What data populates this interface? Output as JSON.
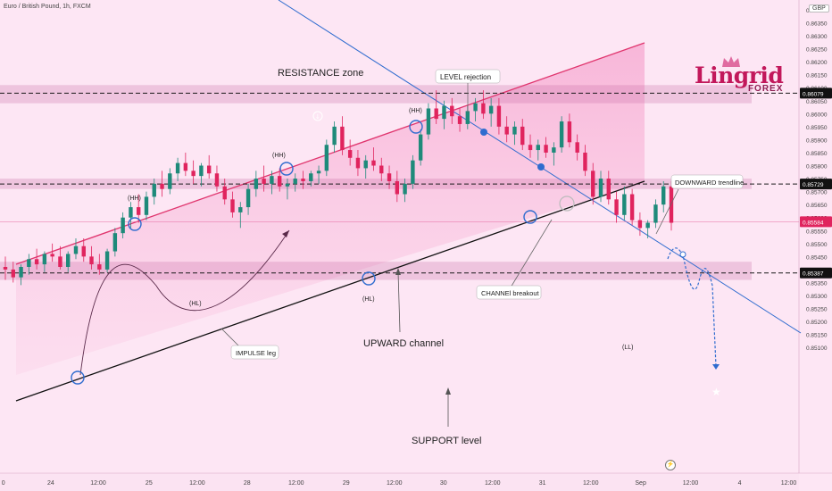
{
  "header": {
    "symbol": "Euro / British Pound, 1h, FXCM"
  },
  "currency_badge": "GBP",
  "logo": {
    "name": "Lingrid",
    "sub": "FOREX"
  },
  "chart_data": {
    "type": "candlestick",
    "ylim": [
      0.8508,
      0.8641
    ],
    "y_ticks": [
      "0.86400",
      "0.86350",
      "0.86300",
      "0.86250",
      "0.86200",
      "0.86150",
      "0.86100",
      "0.86050",
      "0.86000",
      "0.85950",
      "0.85900",
      "0.85850",
      "0.85800",
      "0.85750",
      "0.85700",
      "0.85650",
      "0.85600",
      "0.85550",
      "0.85500",
      "0.85450",
      "0.85400",
      "0.85350",
      "0.85300",
      "0.85250",
      "0.85200",
      "0.85150",
      "0.85100"
    ],
    "x_ticks": [
      {
        "label": "24",
        "pos": 0.061
      },
      {
        "label": "12:00",
        "pos": 0.118
      },
      {
        "label": "25",
        "pos": 0.179
      },
      {
        "label": "12:00",
        "pos": 0.237
      },
      {
        "label": "28",
        "pos": 0.297
      },
      {
        "label": "12:00",
        "pos": 0.356
      },
      {
        "label": "29",
        "pos": 0.416
      },
      {
        "label": "12:00",
        "pos": 0.474
      },
      {
        "label": "30",
        "pos": 0.533
      },
      {
        "label": "12:00",
        "pos": 0.592
      },
      {
        "label": "31",
        "pos": 0.652
      },
      {
        "label": "12:00",
        "pos": 0.71
      },
      {
        "label": "Sep",
        "pos": 0.77
      },
      {
        "label": "12:00",
        "pos": 0.83
      },
      {
        "label": "4",
        "pos": 0.889
      },
      {
        "label": "12:00",
        "pos": 0.948
      },
      {
        "label": "0",
        "pos": 0.004
      }
    ],
    "price_markers": [
      {
        "value": 0.86079,
        "label": "0.86079",
        "style": "dashed"
      },
      {
        "value": 0.85729,
        "label": "0.85729",
        "style": "dashed"
      },
      {
        "value": 0.85584,
        "label": "0.85584",
        "style": "current"
      },
      {
        "value": 0.85387,
        "label": "0.85387",
        "style": "dashed"
      }
    ],
    "zones": [
      {
        "name": "top-band",
        "from": 0.8604,
        "to": 0.8611
      },
      {
        "name": "mid-band",
        "from": 0.8571,
        "to": 0.8575
      },
      {
        "name": "bottom-band",
        "from": 0.8536,
        "to": 0.8543
      }
    ],
    "annotations": {
      "resistance": "RESISTANCE zone",
      "level_rejection": "LEVEL rejection",
      "downward_trendline": "DOWNWARD trendline",
      "channel_breakout": "CHANNEl breakout",
      "impulse_leg": "IMPULSE leg",
      "upward_channel": "UPWARD channel",
      "support": "SUPPORT level",
      "hh1": "(HH)",
      "hh2": "(HH)",
      "hh3": "(HH)",
      "hl1": "(HL)",
      "hl2": "(HL)",
      "ll": "(LL)"
    },
    "candles": [
      [
        0.8541,
        0.8545,
        0.8536,
        0.854
      ],
      [
        0.854,
        0.8543,
        0.8535,
        0.8537
      ],
      [
        0.8537,
        0.8542,
        0.8534,
        0.8541
      ],
      [
        0.8541,
        0.8546,
        0.8538,
        0.8544
      ],
      [
        0.8544,
        0.8548,
        0.854,
        0.8542
      ],
      [
        0.8542,
        0.8547,
        0.8539,
        0.8546
      ],
      [
        0.8546,
        0.855,
        0.8543,
        0.8545
      ],
      [
        0.8545,
        0.8549,
        0.854,
        0.8541
      ],
      [
        0.8541,
        0.8547,
        0.8539,
        0.8546
      ],
      [
        0.8546,
        0.8552,
        0.8544,
        0.8549
      ],
      [
        0.8549,
        0.8552,
        0.8543,
        0.8545
      ],
      [
        0.8545,
        0.8549,
        0.854,
        0.8542
      ],
      [
        0.8542,
        0.8546,
        0.8538,
        0.854
      ],
      [
        0.854,
        0.8548,
        0.8539,
        0.8547
      ],
      [
        0.8547,
        0.8556,
        0.8545,
        0.8554
      ],
      [
        0.8554,
        0.8562,
        0.8552,
        0.856
      ],
      [
        0.856,
        0.8566,
        0.8556,
        0.8564
      ],
      [
        0.8564,
        0.8569,
        0.8558,
        0.8561
      ],
      [
        0.8561,
        0.857,
        0.8559,
        0.8568
      ],
      [
        0.8568,
        0.8575,
        0.8565,
        0.8573
      ],
      [
        0.8573,
        0.8578,
        0.8568,
        0.8571
      ],
      [
        0.8571,
        0.8579,
        0.8569,
        0.8577
      ],
      [
        0.8577,
        0.8583,
        0.8574,
        0.8581
      ],
      [
        0.8581,
        0.8585,
        0.8576,
        0.8578
      ],
      [
        0.8578,
        0.8582,
        0.8573,
        0.8576
      ],
      [
        0.8576,
        0.8581,
        0.8572,
        0.858
      ],
      [
        0.858,
        0.8584,
        0.8575,
        0.8577
      ],
      [
        0.8577,
        0.858,
        0.857,
        0.8572
      ],
      [
        0.8572,
        0.8575,
        0.8565,
        0.8567
      ],
      [
        0.8567,
        0.857,
        0.856,
        0.8562
      ],
      [
        0.8562,
        0.8566,
        0.8556,
        0.8564
      ],
      [
        0.8564,
        0.8573,
        0.8561,
        0.8571
      ],
      [
        0.8571,
        0.8578,
        0.8568,
        0.8575
      ],
      [
        0.8575,
        0.858,
        0.857,
        0.8573
      ],
      [
        0.8573,
        0.8578,
        0.8569,
        0.8576
      ],
      [
        0.8576,
        0.8579,
        0.857,
        0.8572
      ],
      [
        0.8572,
        0.8575,
        0.8567,
        0.8573
      ],
      [
        0.8573,
        0.8577,
        0.857,
        0.8575
      ],
      [
        0.8575,
        0.8578,
        0.8571,
        0.8574
      ],
      [
        0.8574,
        0.8578,
        0.8572,
        0.8577
      ],
      [
        0.8577,
        0.858,
        0.8573,
        0.8578
      ],
      [
        0.8578,
        0.859,
        0.8576,
        0.8588
      ],
      [
        0.8588,
        0.8597,
        0.8585,
        0.8595
      ],
      [
        0.8595,
        0.8599,
        0.8584,
        0.8586
      ],
      [
        0.8586,
        0.859,
        0.858,
        0.8583
      ],
      [
        0.8583,
        0.8586,
        0.8576,
        0.8579
      ],
      [
        0.8579,
        0.8584,
        0.8575,
        0.8582
      ],
      [
        0.8582,
        0.8587,
        0.8578,
        0.858
      ],
      [
        0.858,
        0.8583,
        0.8574,
        0.8577
      ],
      [
        0.8577,
        0.858,
        0.8571,
        0.8574
      ],
      [
        0.8574,
        0.8578,
        0.8566,
        0.8569
      ],
      [
        0.8569,
        0.8575,
        0.8566,
        0.8573
      ],
      [
        0.8573,
        0.8584,
        0.8571,
        0.8582
      ],
      [
        0.8582,
        0.8594,
        0.858,
        0.8592
      ],
      [
        0.8592,
        0.8604,
        0.859,
        0.8602
      ],
      [
        0.8602,
        0.8609,
        0.8596,
        0.8598
      ],
      [
        0.8598,
        0.8605,
        0.8594,
        0.8603
      ],
      [
        0.8603,
        0.8606,
        0.8596,
        0.8599
      ],
      [
        0.8599,
        0.8602,
        0.8593,
        0.8596
      ],
      [
        0.8596,
        0.8603,
        0.8594,
        0.8601
      ],
      [
        0.8601,
        0.8606,
        0.8597,
        0.8604
      ],
      [
        0.8604,
        0.8609,
        0.8598,
        0.86
      ],
      [
        0.86,
        0.8606,
        0.8595,
        0.8603
      ],
      [
        0.8603,
        0.8606,
        0.8592,
        0.8595
      ],
      [
        0.8595,
        0.8599,
        0.8589,
        0.8592
      ],
      [
        0.8592,
        0.8597,
        0.8588,
        0.8595
      ],
      [
        0.8595,
        0.8598,
        0.8586,
        0.8588
      ],
      [
        0.8588,
        0.8592,
        0.8583,
        0.8586
      ],
      [
        0.8586,
        0.859,
        0.8582,
        0.8588
      ],
      [
        0.8588,
        0.8591,
        0.8583,
        0.8585
      ],
      [
        0.8585,
        0.8589,
        0.858,
        0.8587
      ],
      [
        0.8587,
        0.8599,
        0.8585,
        0.8597
      ],
      [
        0.8597,
        0.86,
        0.8587,
        0.8589
      ],
      [
        0.8589,
        0.8592,
        0.8582,
        0.8585
      ],
      [
        0.8585,
        0.8588,
        0.8576,
        0.8578
      ],
      [
        0.8578,
        0.8581,
        0.8565,
        0.8568
      ],
      [
        0.8568,
        0.8578,
        0.8566,
        0.8575
      ],
      [
        0.8575,
        0.8578,
        0.8565,
        0.8567
      ],
      [
        0.8567,
        0.857,
        0.8558,
        0.8561
      ],
      [
        0.8561,
        0.8572,
        0.8559,
        0.8569
      ],
      [
        0.8569,
        0.8571,
        0.8557,
        0.8559
      ],
      [
        0.8559,
        0.8562,
        0.8553,
        0.8556
      ],
      [
        0.8556,
        0.8559,
        0.8552,
        0.8558
      ],
      [
        0.8558,
        0.8567,
        0.8556,
        0.8565
      ],
      [
        0.8565,
        0.8574,
        0.8562,
        0.8572
      ],
      [
        0.8572,
        0.8574,
        0.8555,
        0.8558
      ]
    ]
  }
}
